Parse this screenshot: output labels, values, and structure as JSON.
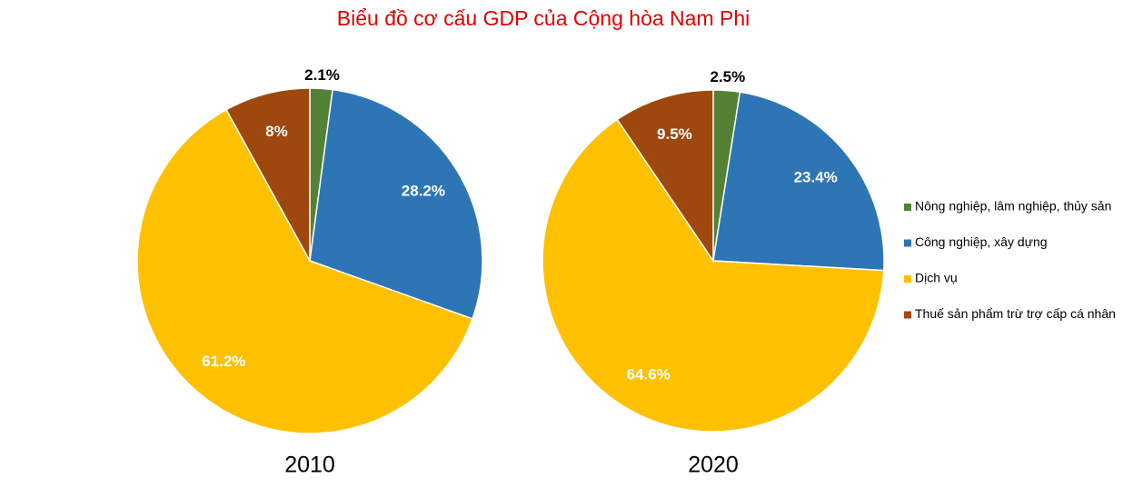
{
  "title": "Biểu đồ cơ cấu GDP của Cộng hòa Nam Phi",
  "legend": {
    "categories": [
      "Nông nghiệp, lâm nghiệp, thủy sản",
      "Công nghiệp, xây dựng",
      "Dịch vụ",
      "Thuế sản phẩm trừ trợ cấp cá nhân"
    ],
    "colors": [
      "#538135",
      "#2e75b6",
      "#ffc000",
      "#9e480e"
    ]
  },
  "chart_data": [
    {
      "type": "pie",
      "title": "2010",
      "values": [
        2.1,
        28.2,
        61.2,
        8
      ],
      "value_labels": [
        "2.1%",
        "28.2%",
        "61.2%",
        "8%"
      ]
    },
    {
      "type": "pie",
      "title": "2020",
      "values": [
        2.5,
        23.4,
        64.6,
        9.5
      ],
      "value_labels": [
        "2.5%",
        "23.4%",
        "64.6%",
        "9.5%"
      ]
    }
  ]
}
